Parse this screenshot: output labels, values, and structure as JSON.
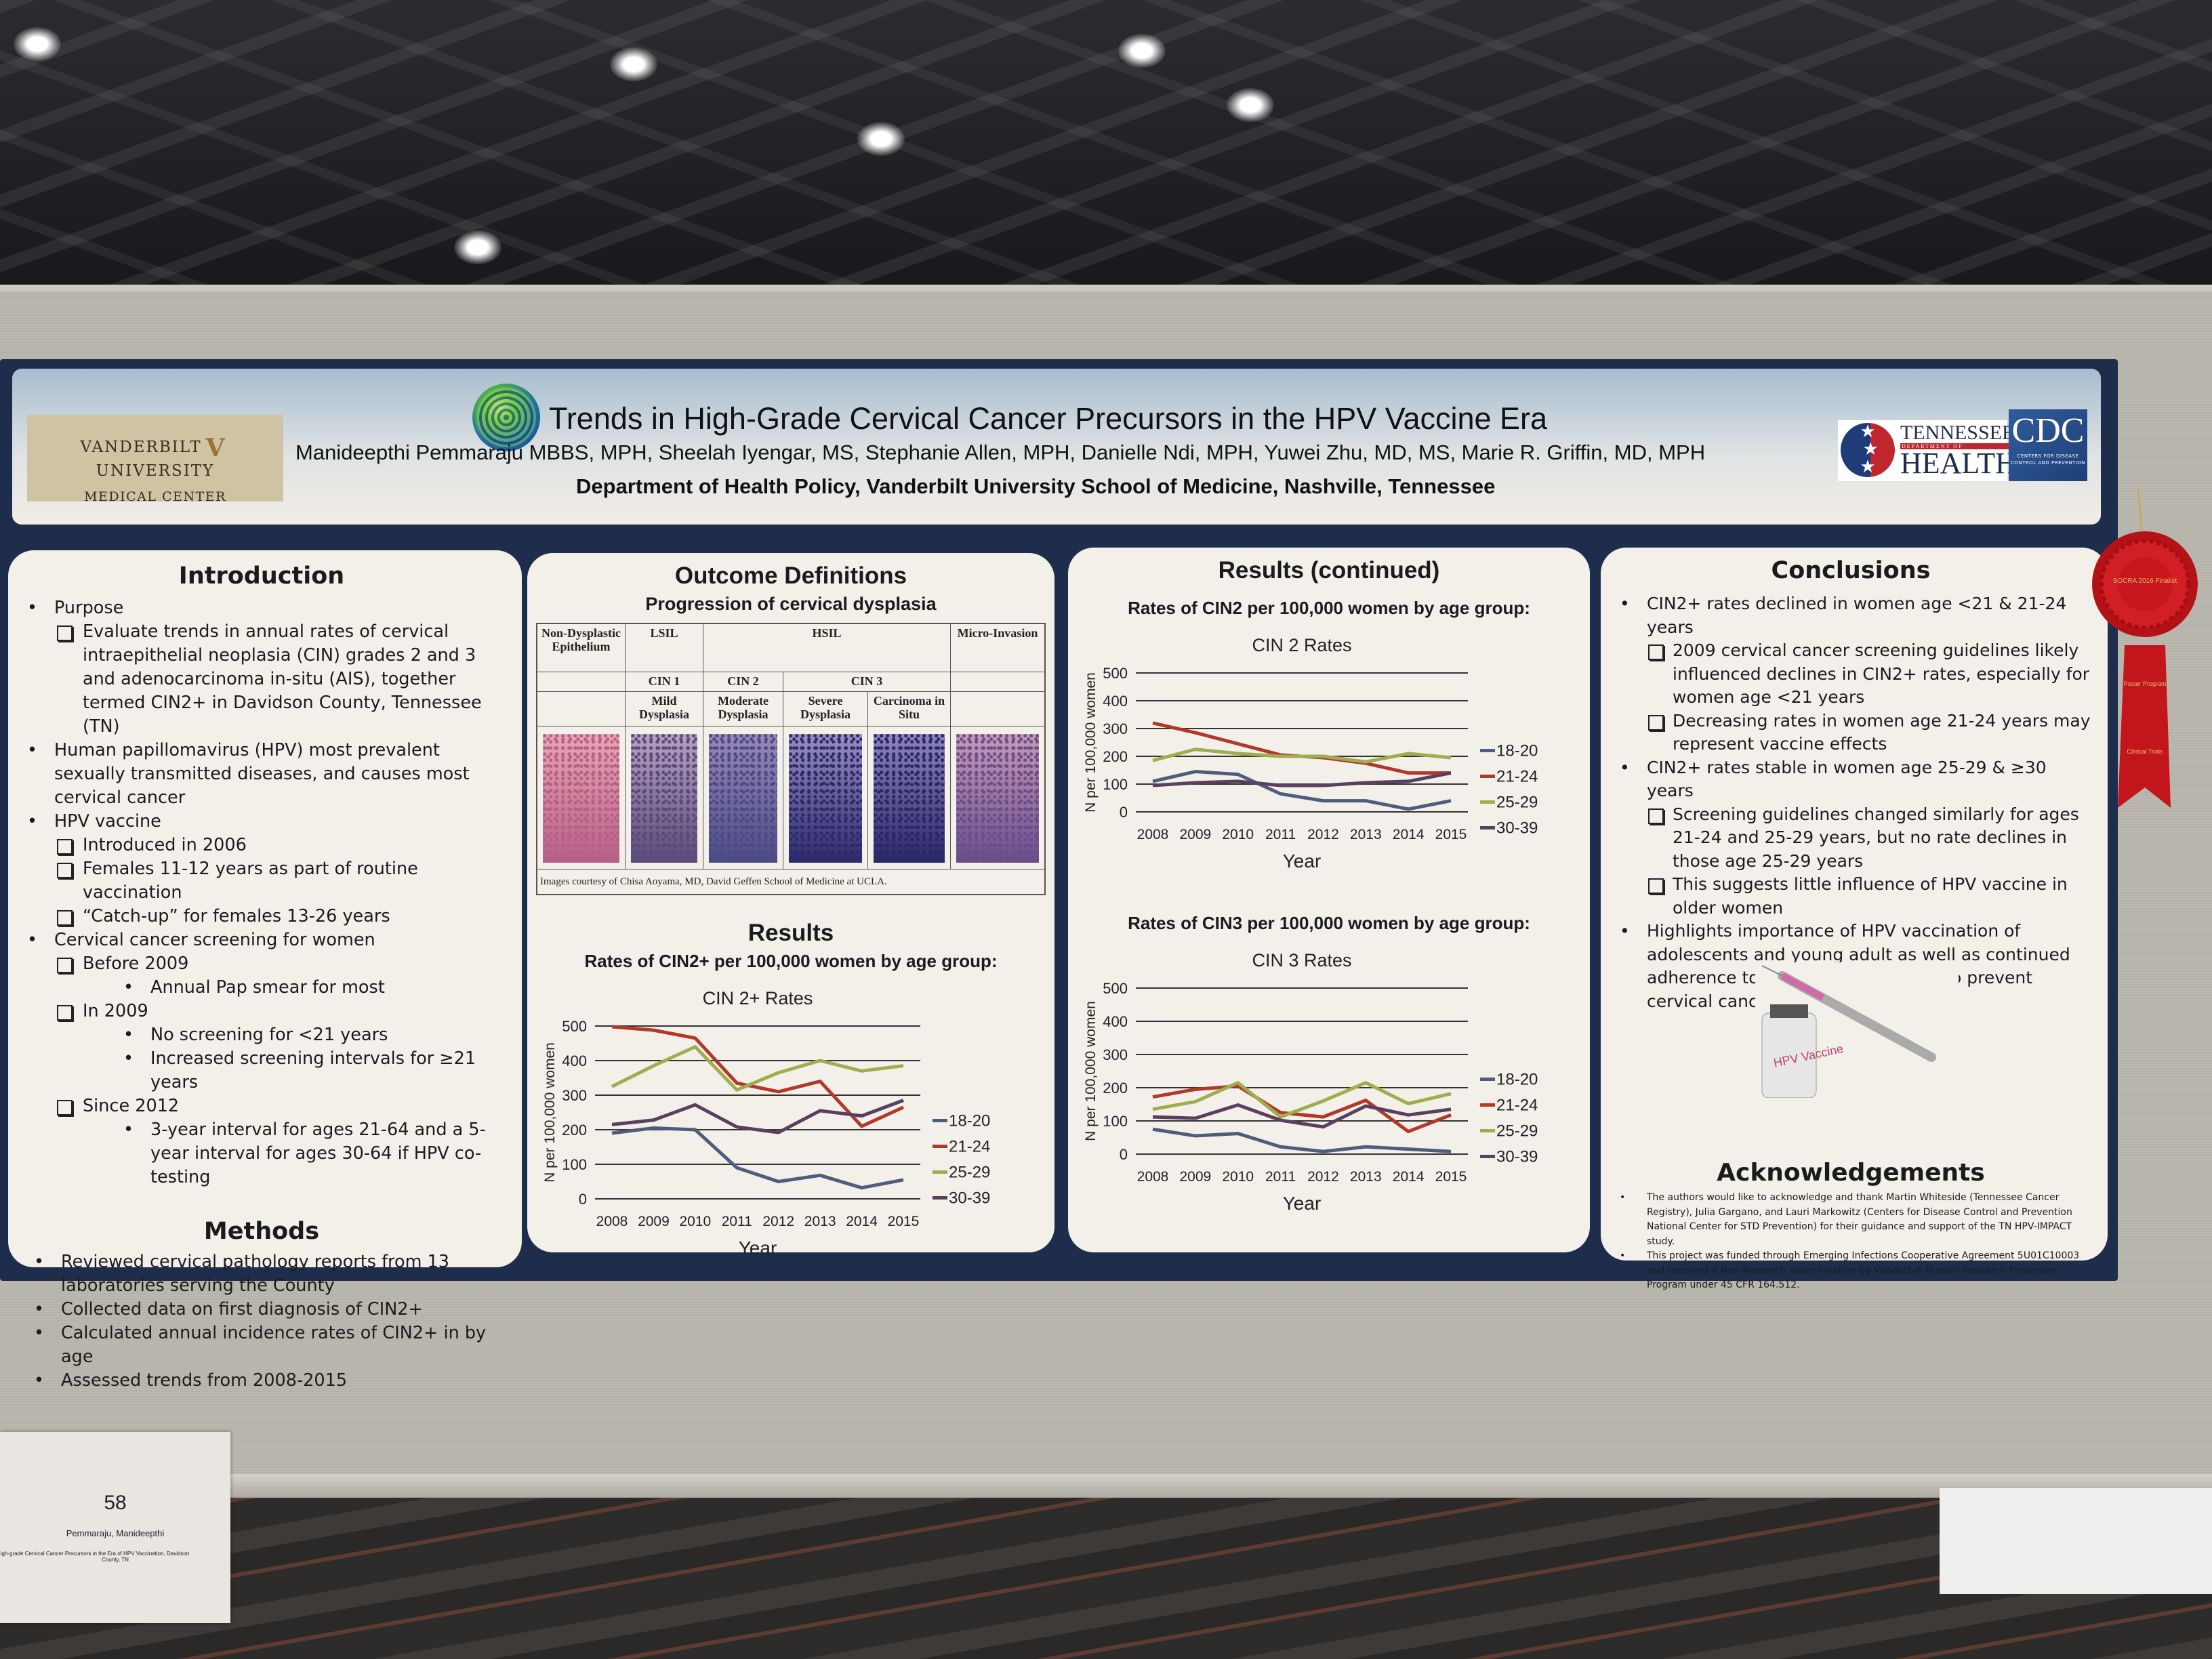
{
  "header": {
    "logo_left": {
      "line1": "VANDERBILT",
      "mark": "V",
      "line2": "UNIVERSITY",
      "line3": "MEDICAL CENTER"
    },
    "title": "Trends in High-Grade Cervical Cancer Precursors in the HPV Vaccine Era",
    "authors": "Manideepthi Pemmaraju MBBS, MPH, Sheelah Iyengar, MS, Stephanie Allen, MPH, Danielle Ndi, MPH, Yuwei Zhu, MD, MS, Marie R. Griffin, MD, MPH",
    "affiliation": "Department of Health Policy, Vanderbilt University School of Medicine, Nashville, Tennessee",
    "logo_tn": {
      "top": "TENNESSEE",
      "mid": "DEPARTMENT OF",
      "bottom": "HEALTH"
    },
    "logo_cdc": {
      "name": "CDC",
      "sub": "CENTERS FOR DISEASE CONTROL AND PREVENTION"
    }
  },
  "introduction": {
    "heading": "Introduction",
    "items": [
      {
        "type": "bullet",
        "text": "Purpose"
      },
      {
        "type": "checkbox",
        "text": "Evaluate  trends in annual rates of cervical intraepithelial neoplasia (CIN) grades 2 and 3 and adenocarcinoma in-situ (AIS), together termed CIN2+ in Davidson County, Tennessee (TN)"
      },
      {
        "type": "bullet",
        "text": "Human papillomavirus (HPV) most prevalent sexually transmitted diseases, and causes most cervical cancer"
      },
      {
        "type": "bullet",
        "text": "HPV vaccine"
      },
      {
        "type": "checkbox",
        "text": "Introduced in 2006"
      },
      {
        "type": "checkbox",
        "text": "Females 11-12 years as part of routine vaccination"
      },
      {
        "type": "checkbox",
        "text": "“Catch-up” for females 13-26 years"
      },
      {
        "type": "bullet",
        "text": "Cervical cancer screening for women"
      },
      {
        "type": "checkbox",
        "text": "Before 2009"
      },
      {
        "type": "sub",
        "text": "Annual Pap smear for most"
      },
      {
        "type": "checkbox",
        "text": "In 2009"
      },
      {
        "type": "sub",
        "text": "No screening for <21 years"
      },
      {
        "type": "sub",
        "text": "Increased screening intervals for ≥21 years"
      },
      {
        "type": "checkbox",
        "text": "Since 2012"
      },
      {
        "type": "sub",
        "text": "3-year interval for ages 21-64 and a 5-year interval for ages 30-64 if HPV co-testing"
      }
    ]
  },
  "methods": {
    "heading": "Methods",
    "items": [
      {
        "type": "bullet",
        "text": "Reviewed cervical pathology reports from 13 laboratories serving the County"
      },
      {
        "type": "bullet",
        "text": "Collected data on first diagnosis of CIN2+"
      },
      {
        "type": "bullet",
        "text": "Calculated annual incidence rates of CIN2+ in by age"
      },
      {
        "type": "bullet",
        "text": "Assessed trends from 2008-2015"
      }
    ]
  },
  "outcome": {
    "heading": "Outcome Definitions",
    "subheading": "Progression of cervical dysplasia",
    "table": {
      "row1": [
        "Non-Dysplastic Epithelium",
        "LSIL",
        "HSIL",
        "Micro-Invasion"
      ],
      "row2": [
        "",
        "CIN 1",
        "CIN 2",
        "CIN 3",
        ""
      ],
      "row3": [
        "",
        "Mild Dysplasia",
        "Moderate Dysplasia",
        "Severe Dysplasia",
        "Carcinoma in Situ",
        ""
      ],
      "credit": "Images courtesy of Chisa Aoyama, MD, David Geffen School of Medicine at UCLA."
    }
  },
  "results": {
    "heading": "Results",
    "chart_heading": "Rates of CIN2+ per 100,000 women by age group:"
  },
  "results_continued": {
    "heading": "Results (continued)",
    "chart1_heading": "Rates of CIN2 per 100,000 women by age group:",
    "chart2_heading": "Rates of CIN3 per 100,000 women by age group:"
  },
  "conclusions": {
    "heading": "Conclusions",
    "items": [
      {
        "type": "bullet",
        "text": "CIN2+ rates declined in women age <21 & 21-24 years"
      },
      {
        "type": "checkbox",
        "text": "2009 cervical cancer screening guidelines likely influenced declines in CIN2+ rates, especially for women age <21 years"
      },
      {
        "type": "checkbox",
        "text": "Decreasing rates in women age 21-24 years may represent vaccine effects"
      },
      {
        "type": "bullet",
        "text": "CIN2+ rates stable in women age 25-29 & ≥30 years"
      },
      {
        "type": "checkbox",
        "text": "Screening guidelines changed similarly for ages 21-24 and 25-29 years, but no rate declines in those age 25-29 years"
      },
      {
        "type": "checkbox",
        "text": "This suggests little influence of HPV vaccine in older women"
      },
      {
        "type": "bullet",
        "text": "Highlights importance of HPV vaccination of adolescents and young adult as well as continued adherence to screening guidelines to prevent cervical cancer"
      }
    ],
    "vaccine_label": "HPV Vaccine"
  },
  "acknowledgements": {
    "heading": "Acknowledgements",
    "items": [
      {
        "type": "bullet",
        "text": "The authors would like to acknowledge and thank Martin Whiteside (Tennessee Cancer Registry), Julia Gargano, and Lauri Markowitz (Centers for Disease Control and Prevention National Center for STD Prevention)  for their guidance and support of the TN HPV-IMPACT study."
      },
      {
        "type": "bullet",
        "text": "This project was funded through Emerging Infections Cooperative Agreement 5U01C10003 and received a Non-Research determination by Vanderbilt Human Research Protection Program under 45 CFR 164.512."
      }
    ]
  },
  "ribbon": {
    "center": "SOCRA 2016 Finalist",
    "tail": [
      "Poster Program",
      "Clinical Trials"
    ],
    "color": "#c3161c"
  },
  "sign": {
    "number": "58",
    "name": "Pemmaraju, Manideepthi",
    "title_line1": "igh-grade Cervical Cancer Precursors in the Era of HPV Vaccination, Davidson",
    "title_line2": "County, TN"
  },
  "colors": {
    "series_18_20": "#4f5d7c",
    "series_21_24": "#b3382c",
    "series_25_29": "#9fad4e",
    "series_30_39": "#5b3f5f",
    "panel": "#f3f0ea",
    "poster_border": "#1f2d4d"
  },
  "chart_data": [
    {
      "type": "line",
      "title": "CIN 2+ Rates",
      "xlabel": "Year",
      "ylabel": "N per 100,000 women",
      "x": [
        2008,
        2009,
        2010,
        2011,
        2012,
        2013,
        2014,
        2015
      ],
      "ylim": [
        0,
        500
      ],
      "yticks": [
        0,
        100,
        200,
        300,
        400,
        500
      ],
      "grid": true,
      "legend": "right",
      "series": [
        {
          "name": "18-20",
          "color": "#4f5d7c",
          "values": [
            190,
            205,
            200,
            90,
            50,
            68,
            32,
            55
          ]
        },
        {
          "name": "21-24",
          "color": "#b3382c",
          "values": [
            498,
            488,
            465,
            335,
            310,
            340,
            210,
            265
          ]
        },
        {
          "name": "25-29",
          "color": "#9fad4e",
          "values": [
            325,
            385,
            440,
            315,
            365,
            400,
            370,
            385
          ]
        },
        {
          "name": "30-39",
          "color": "#5b3f5f",
          "values": [
            215,
            228,
            272,
            208,
            192,
            255,
            240,
            285
          ]
        }
      ]
    },
    {
      "type": "line",
      "title": "CIN 2 Rates",
      "xlabel": "Year",
      "ylabel": "N per 100,000 women",
      "x": [
        2008,
        2009,
        2010,
        2011,
        2012,
        2013,
        2014,
        2015
      ],
      "ylim": [
        0,
        500
      ],
      "yticks": [
        0,
        100,
        200,
        300,
        400,
        500
      ],
      "grid": true,
      "legend": "right",
      "series": [
        {
          "name": "18-20",
          "color": "#4f5d7c",
          "values": [
            110,
            145,
            135,
            65,
            40,
            40,
            10,
            40
          ]
        },
        {
          "name": "21-24",
          "color": "#b3382c",
          "values": [
            320,
            285,
            245,
            205,
            195,
            175,
            140,
            140
          ]
        },
        {
          "name": "25-29",
          "color": "#9fad4e",
          "values": [
            185,
            225,
            210,
            200,
            200,
            180,
            210,
            195
          ]
        },
        {
          "name": "30-39",
          "color": "#5b3f5f",
          "values": [
            95,
            105,
            110,
            95,
            95,
            105,
            110,
            140
          ]
        }
      ]
    },
    {
      "type": "line",
      "title": "CIN 3 Rates",
      "xlabel": "Year",
      "ylabel": "N per 100,000  women",
      "x": [
        2008,
        2009,
        2010,
        2011,
        2012,
        2013,
        2014,
        2015
      ],
      "ylim": [
        0,
        500
      ],
      "yticks": [
        0,
        100,
        200,
        300,
        400,
        500
      ],
      "grid": true,
      "legend": "right",
      "series": [
        {
          "name": "18-20",
          "color": "#4f5d7c",
          "values": [
            75,
            55,
            62,
            22,
            8,
            22,
            15,
            8
          ]
        },
        {
          "name": "21-24",
          "color": "#b3382c",
          "values": [
            172,
            195,
            205,
            125,
            112,
            162,
            68,
            118
          ]
        },
        {
          "name": "25-29",
          "color": "#9fad4e",
          "values": [
            135,
            158,
            215,
            112,
            160,
            215,
            152,
            182
          ]
        },
        {
          "name": "30-39",
          "color": "#5b3f5f",
          "values": [
            112,
            108,
            148,
            102,
            82,
            145,
            118,
            135
          ]
        }
      ]
    }
  ]
}
